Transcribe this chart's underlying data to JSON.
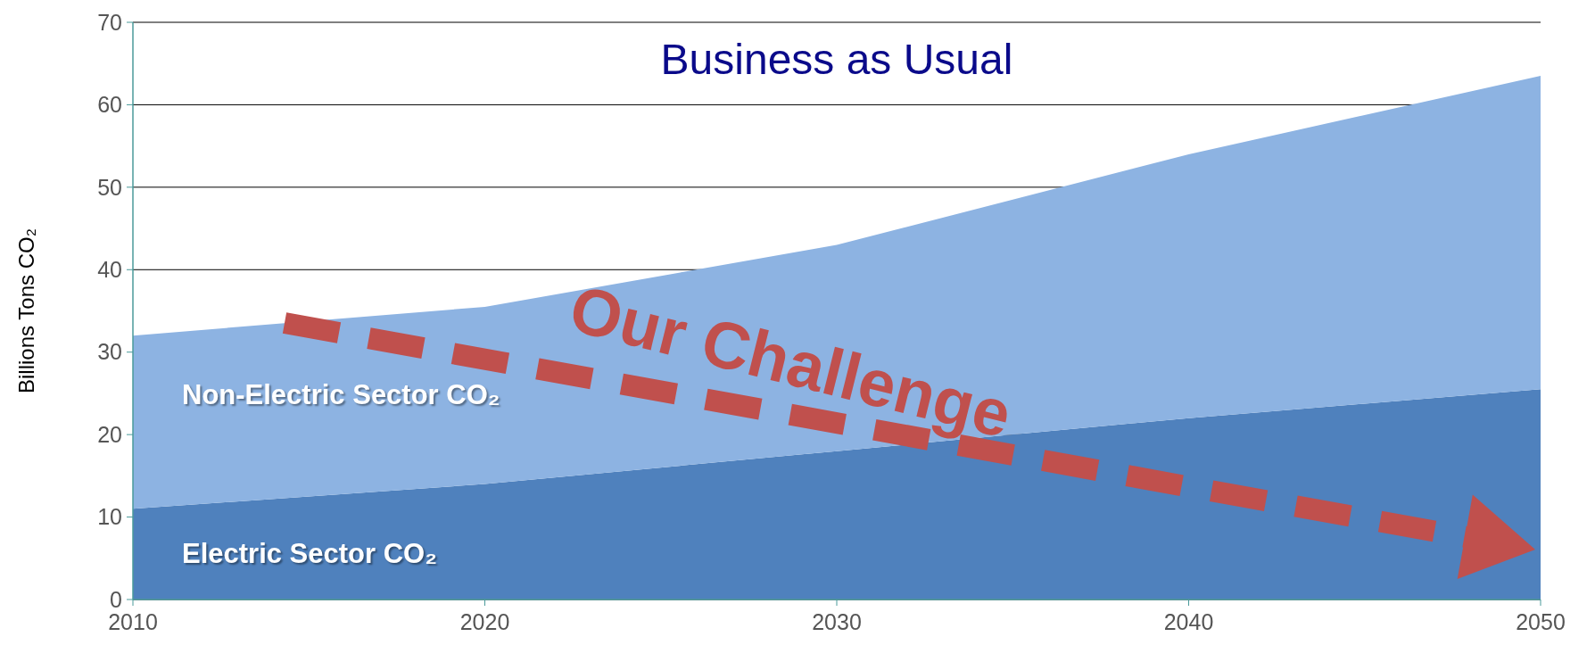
{
  "chart_data": {
    "type": "area",
    "stacked": true,
    "title": "Business as Usual",
    "ylabel": "Billions Tons CO₂",
    "x": [
      2010,
      2020,
      2030,
      2040,
      2050
    ],
    "series": [
      {
        "name": "Electric Sector CO₂",
        "color": "#4f81bd",
        "values": [
          11,
          14,
          18,
          22,
          25.5
        ]
      },
      {
        "name": "Non-Electric Sector CO₂",
        "color": "#8db3e2",
        "values": [
          21,
          21.5,
          25,
          32,
          38
        ]
      }
    ],
    "xlim": [
      2010,
      2050
    ],
    "xticks": [
      2010,
      2020,
      2030,
      2040,
      2050
    ],
    "ylim": [
      0,
      70
    ],
    "yticks": [
      0,
      10,
      20,
      30,
      40,
      50,
      60,
      70
    ],
    "grid": "y",
    "legend": false,
    "annotations": [
      "Our Challenge"
    ]
  }
}
